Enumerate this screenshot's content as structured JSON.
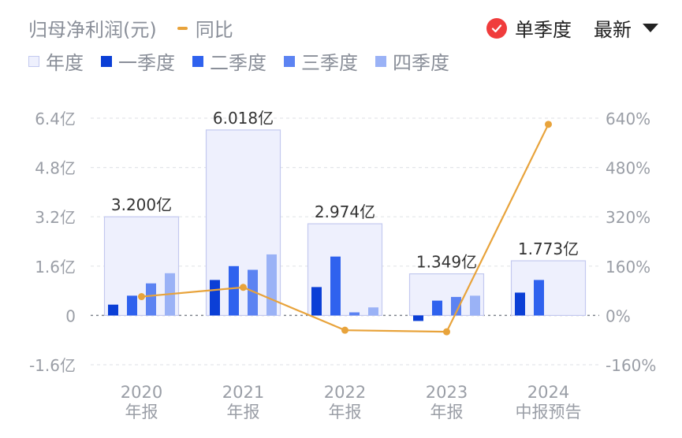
{
  "header": {
    "metric_label": "归母净利润(元)",
    "yoy_label": "同比",
    "toggle_label": "单季度",
    "sort_label": "最新"
  },
  "legend": [
    {
      "key": "annual",
      "label": "年度"
    },
    {
      "key": "q1",
      "label": "一季度"
    },
    {
      "key": "q2",
      "label": "二季度"
    },
    {
      "key": "q3",
      "label": "三季度"
    },
    {
      "key": "q4",
      "label": "四季度"
    }
  ],
  "colors": {
    "annual_fill": "#eef0fd",
    "annual_stroke": "#c3c9ef",
    "q1": "#0b3fd6",
    "q2": "#2f62ee",
    "q3": "#5c83f2",
    "q4": "#9ab2f6",
    "yoy_line": "#e8a33b",
    "axis_text": "#9a9ea6",
    "grid": "#e3e5e9"
  },
  "chart_data": {
    "type": "bar",
    "categories": [
      "2020\n年报",
      "2021\n年报",
      "2022\n年报",
      "2023\n年报",
      "2024\n中报预告"
    ],
    "category_lines": [
      [
        "2020",
        "年报"
      ],
      [
        "2021",
        "年报"
      ],
      [
        "2022",
        "年报"
      ],
      [
        "2023",
        "年报"
      ],
      [
        "2024",
        "中报预告"
      ]
    ],
    "annual": [
      3.2,
      6.018,
      2.974,
      1.349,
      1.773
    ],
    "annual_labels": [
      "3.200亿",
      "6.018亿",
      "2.974亿",
      "1.349亿",
      "1.773亿"
    ],
    "series": [
      {
        "name": "一季度",
        "values": [
          0.35,
          1.15,
          0.92,
          -0.18,
          0.74
        ]
      },
      {
        "name": "二季度",
        "values": [
          0.64,
          1.6,
          1.91,
          0.48,
          1.15
        ]
      },
      {
        "name": "三季度",
        "values": [
          1.04,
          1.48,
          0.1,
          0.6,
          null
        ]
      },
      {
        "name": "四季度",
        "values": [
          1.37,
          1.98,
          0.26,
          0.64,
          null
        ]
      }
    ],
    "yoy": [
      61,
      91,
      -48,
      -53,
      620
    ],
    "y_axis_left": {
      "ticks": [
        6.4,
        4.8,
        3.2,
        1.6,
        0,
        -1.6
      ],
      "tick_labels": [
        "6.4亿",
        "4.8亿",
        "3.2亿",
        "1.6亿",
        "0",
        "-1.6亿"
      ],
      "ylim": [
        -1.6,
        6.4
      ]
    },
    "y_axis_right": {
      "ticks": [
        640,
        480,
        320,
        160,
        0,
        -160
      ],
      "tick_labels": [
        "640%",
        "480%",
        "320%",
        "160%",
        "0%",
        "-160%"
      ],
      "ylim": [
        -160,
        640
      ]
    },
    "grid": true,
    "legend_position": "top-left"
  }
}
